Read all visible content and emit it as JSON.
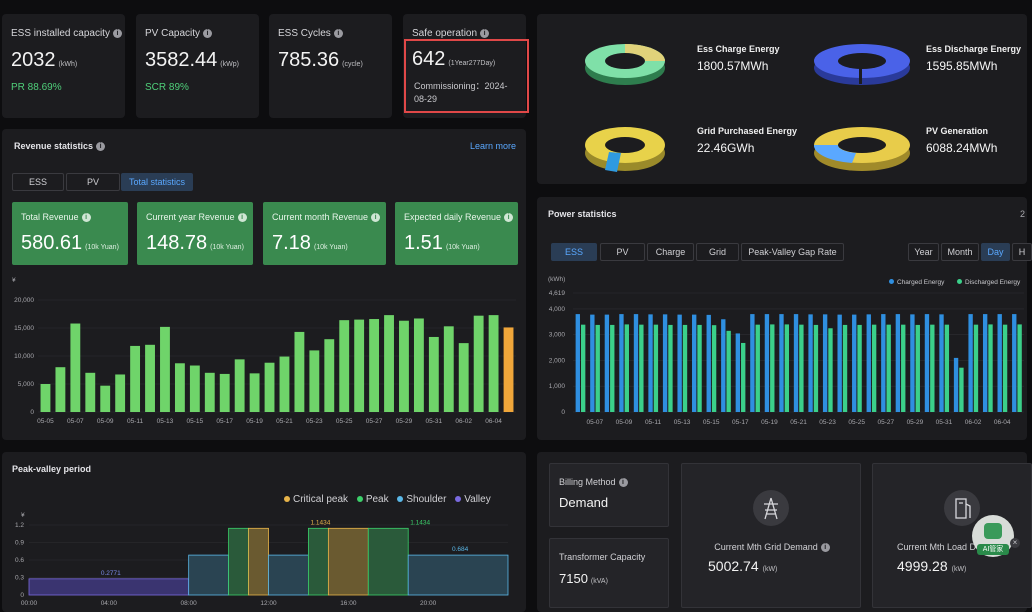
{
  "kpis": [
    {
      "title": "ESS installed capacity",
      "value": "2032",
      "unit": "(kWh)",
      "sub": "PR 88.69%"
    },
    {
      "title": "PV Capacity",
      "value": "3582.44",
      "unit": "(kWp)",
      "sub": "SCR 89%"
    },
    {
      "title": "ESS Cycles",
      "value": "785.36",
      "unit": "(cycle)",
      "sub": ""
    },
    {
      "title": "Safe operation",
      "value": "642",
      "unit": "(1Year277Day)",
      "commissioning": "Commissioning：2024-08-29"
    }
  ],
  "energy": [
    {
      "label": "Ess Charge Energy",
      "value": "1800.57MWh"
    },
    {
      "label": "Ess Discharge Energy",
      "value": "1595.85MWh"
    },
    {
      "label": "Grid Purchased Energy",
      "value": "22.46GWh"
    },
    {
      "label": "PV Generation",
      "value": "6088.24MWh"
    }
  ],
  "revenue": {
    "title": "Revenue statistics",
    "learn_more": "Learn more",
    "tabs": [
      "ESS",
      "PV",
      "Total statistics"
    ],
    "boxes": [
      {
        "title": "Total Revenue",
        "value": "580.61",
        "unit": "(10k Yuan)"
      },
      {
        "title": "Current year Revenue",
        "value": "148.78",
        "unit": "(10k Yuan)"
      },
      {
        "title": "Current month Revenue",
        "value": "7.18",
        "unit": "(10k Yuan)"
      },
      {
        "title": "Expected daily Revenue",
        "value": "1.51",
        "unit": "(10k Yuan)"
      }
    ],
    "y_unit": "¥"
  },
  "power": {
    "title": "Power statistics",
    "header_right": "2",
    "tabs": [
      "ESS",
      "PV",
      "Charge",
      "Grid",
      "Peak-Valley Gap Rate"
    ],
    "periods": [
      "Year",
      "Month",
      "Day",
      "H"
    ],
    "y_unit": "(kWh)",
    "legend": [
      "Charged Energy",
      "Discharged Energy"
    ]
  },
  "peak_valley": {
    "title": "Peak-valley period",
    "legend": [
      "Critical peak",
      "Peak",
      "Shoulder",
      "Valley"
    ],
    "y_unit": "¥"
  },
  "billing": {
    "method_label": "Billing Method",
    "method_value": "Demand",
    "transformer_label": "Transformer Capacity",
    "transformer_value": "7150",
    "transformer_unit": "(kVA)",
    "grid_demand_label": "Current Mth Grid Demand",
    "grid_demand_value": "5002.74",
    "grid_demand_unit": "(kW)",
    "load_demand_label": "Current Mth Load Demand",
    "load_demand_value": "4999.28",
    "load_demand_unit": "(kW)",
    "ai_badge": "AI管家"
  },
  "colors": {
    "green": "#3a8a4f",
    "accent": "#5aa8ff",
    "charged": "#2f8fe0",
    "discharged": "#3bd08a"
  },
  "chart_data": [
    {
      "type": "bar",
      "categories": [
        "05-05",
        "05-06",
        "05-07",
        "05-08",
        "05-09",
        "05-10",
        "05-11",
        "05-12",
        "05-13",
        "05-14",
        "05-15",
        "05-16",
        "05-17",
        "05-18",
        "05-19",
        "05-20",
        "05-21",
        "05-22",
        "05-23",
        "05-24",
        "05-25",
        "05-26",
        "05-27",
        "05-28",
        "05-29",
        "05-30",
        "05-31",
        "06-01",
        "06-02",
        "06-03",
        "06-04",
        "06-05"
      ],
      "tick_labels": [
        "05-05",
        "05-07",
        "05-09",
        "05-11",
        "05-13",
        "05-15",
        "05-17",
        "05-19",
        "05-21",
        "05-23",
        "05-25",
        "05-27",
        "05-29",
        "05-31",
        "06-02",
        "06-04"
      ],
      "values": [
        5000,
        8000,
        15800,
        7000,
        4700,
        6700,
        11800,
        12000,
        15200,
        8700,
        8300,
        7000,
        6800,
        9400,
        6900,
        8800,
        9900,
        14300,
        11000,
        13000,
        16400,
        16500,
        16600,
        17300,
        16300,
        16700,
        13400,
        15300,
        12300,
        17200,
        17300,
        15100
      ],
      "ylim": [
        0,
        20000
      ],
      "yticks": [
        "0",
        "5,000",
        "10,000",
        "15,000",
        "20,000"
      ],
      "ylabel": "¥"
    },
    {
      "type": "bar",
      "categories": [
        "05-06",
        "05-07",
        "05-08",
        "05-09",
        "05-10",
        "05-11",
        "05-12",
        "05-13",
        "05-14",
        "05-15",
        "05-16",
        "05-17",
        "05-18",
        "05-19",
        "05-20",
        "05-21",
        "05-22",
        "05-23",
        "05-24",
        "05-25",
        "05-26",
        "05-27",
        "05-28",
        "05-29",
        "05-30",
        "05-31",
        "06-01",
        "06-02",
        "06-03",
        "06-04",
        "06-05"
      ],
      "tick_labels": [
        "05-07",
        "05-09",
        "05-11",
        "05-13",
        "05-15",
        "05-17",
        "05-19",
        "05-21",
        "05-23",
        "05-25",
        "05-27",
        "05-29",
        "05-31",
        "06-02",
        "06-04"
      ],
      "series": [
        {
          "name": "Charged Energy",
          "values": [
            3800,
            3780,
            3780,
            3800,
            3800,
            3790,
            3790,
            3780,
            3780,
            3770,
            3600,
            3050,
            3800,
            3800,
            3800,
            3800,
            3790,
            3790,
            3780,
            3780,
            3790,
            3800,
            3800,
            3790,
            3800,
            3790,
            2100,
            3800,
            3800,
            3800,
            3800
          ]
        },
        {
          "name": "Discharged Energy",
          "values": [
            3390,
            3380,
            3380,
            3400,
            3390,
            3390,
            3380,
            3380,
            3380,
            3370,
            3150,
            2680,
            3390,
            3400,
            3400,
            3390,
            3380,
            3250,
            3380,
            3380,
            3390,
            3390,
            3390,
            3380,
            3390,
            3390,
            1720,
            3390,
            3400,
            3390,
            3400
          ]
        }
      ],
      "ylim": [
        0,
        4619
      ],
      "yticks": [
        "0",
        "1,000",
        "2,000",
        "3,000",
        "4,000",
        "4,619"
      ],
      "ylabel": "(kWh)"
    },
    {
      "type": "line",
      "title": "",
      "x": [
        "00:00",
        "04:00",
        "08:00",
        "12:00",
        "16:00",
        "20:00"
      ],
      "periods": [
        {
          "start": 0,
          "end": 8,
          "price": 0.2771,
          "type": "Valley"
        },
        {
          "start": 8,
          "end": 10,
          "price": 0.684,
          "type": "Shoulder"
        },
        {
          "start": 10,
          "end": 11,
          "price": 1.1434,
          "type": "Peak"
        },
        {
          "start": 11,
          "end": 12,
          "price": 1.1434,
          "type": "Critical peak"
        },
        {
          "start": 12,
          "end": 14,
          "price": 0.684,
          "type": "Shoulder"
        },
        {
          "start": 14,
          "end": 15,
          "price": 1.1434,
          "type": "Peak"
        },
        {
          "start": 15,
          "end": 17,
          "price": 1.1434,
          "type": "Critical peak"
        },
        {
          "start": 17,
          "end": 19,
          "price": 1.1434,
          "type": "Peak"
        },
        {
          "start": 19,
          "end": 24,
          "price": 0.684,
          "type": "Shoulder"
        }
      ],
      "labels": [
        "0.2771",
        "1.1434",
        "1.1434",
        "0.684"
      ],
      "ylim": [
        0,
        1.2
      ],
      "yticks": [
        "0",
        "0.3",
        "0.6",
        "0.9",
        "1.2"
      ],
      "ylabel": "¥"
    }
  ]
}
